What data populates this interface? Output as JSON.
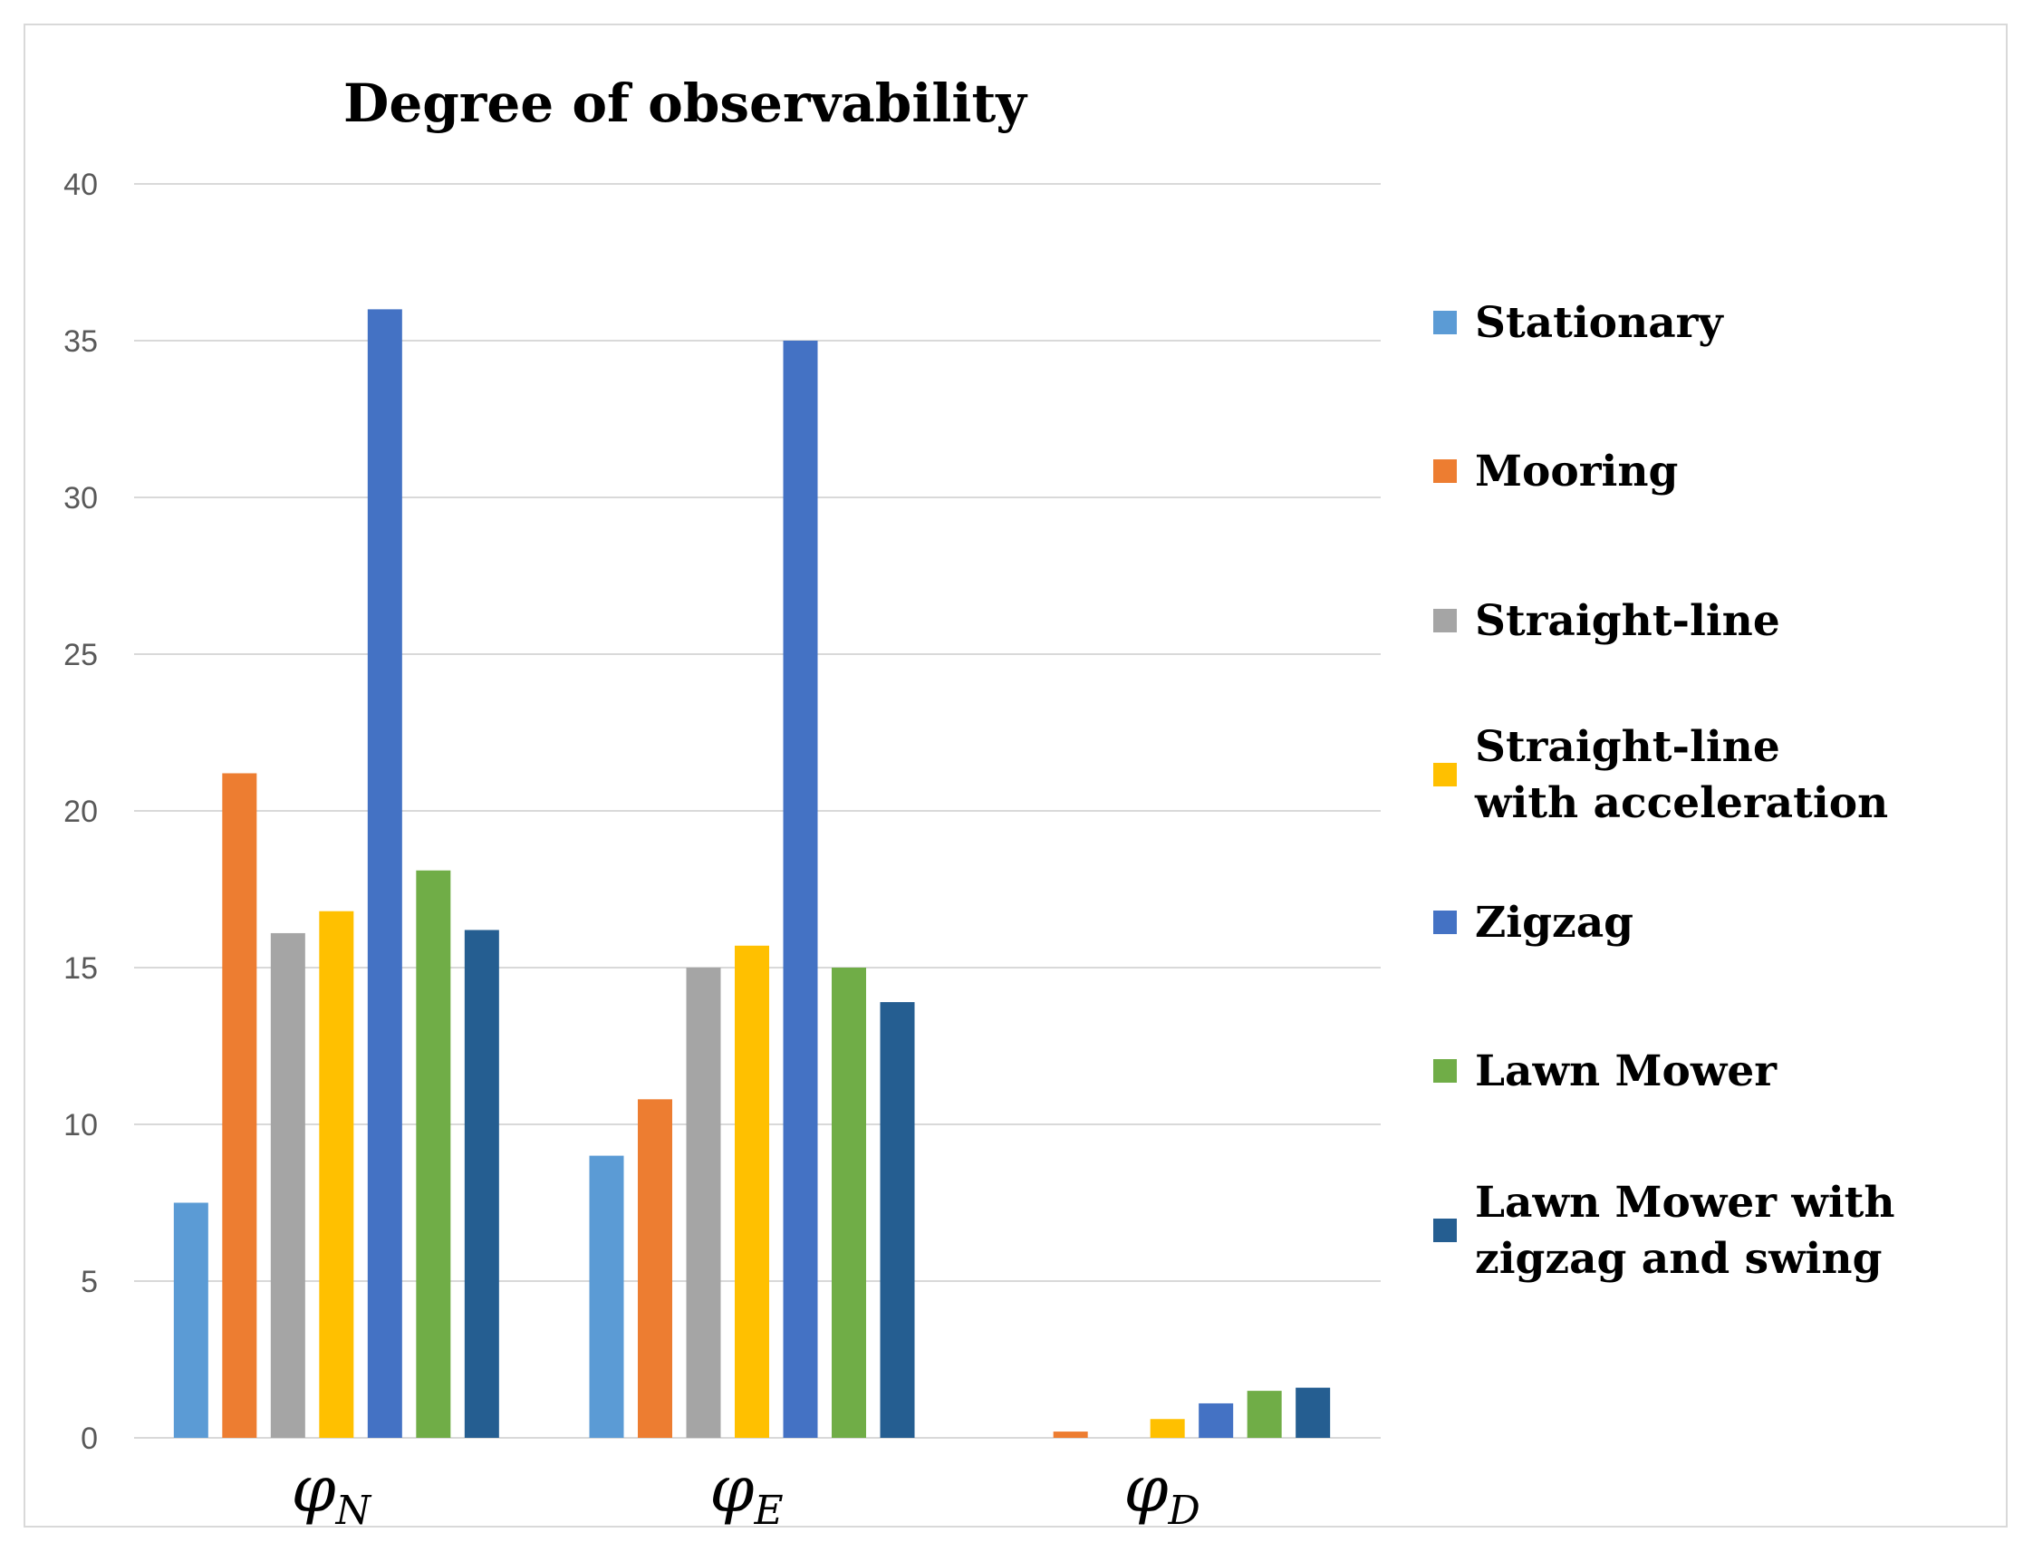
{
  "chart_data": {
    "type": "bar",
    "title": "Degree of observability",
    "xlabel": "",
    "ylabel": "",
    "ylim": [
      0,
      40
    ],
    "yticks": [
      0,
      5,
      10,
      15,
      20,
      25,
      30,
      35,
      40
    ],
    "grid": true,
    "legend_position": "right",
    "categories": [
      {
        "symbol": "φ",
        "subscript": "N"
      },
      {
        "symbol": "φ",
        "subscript": "E"
      },
      {
        "symbol": "φ",
        "subscript": "D"
      }
    ],
    "series": [
      {
        "name": "Stationary",
        "color": "#5b9bd5",
        "values": [
          7.5,
          9.0,
          0.0
        ]
      },
      {
        "name": "Mooring",
        "color": "#ed7d31",
        "values": [
          21.2,
          10.8,
          0.2
        ]
      },
      {
        "name": "Straight-line",
        "color": "#a5a5a5",
        "values": [
          16.1,
          15.0,
          0.0
        ]
      },
      {
        "name": "Straight-line with acceleration",
        "color": "#ffc000",
        "values": [
          16.8,
          15.7,
          0.6
        ]
      },
      {
        "name": "Zigzag",
        "color": "#4472c4",
        "values": [
          36.0,
          35.0,
          1.1
        ]
      },
      {
        "name": "Lawn Mower",
        "color": "#70ad47",
        "values": [
          18.1,
          15.0,
          1.5
        ]
      },
      {
        "name": "Lawn Mower with zigzag and swing",
        "color": "#255e91",
        "values": [
          16.2,
          13.9,
          1.6
        ]
      }
    ],
    "legend_lines": [
      [
        "Stationary"
      ],
      [
        "Mooring"
      ],
      [
        "Straight-line"
      ],
      [
        "Straight-line",
        "with acceleration"
      ],
      [
        "Zigzag"
      ],
      [
        "Lawn Mower"
      ],
      [
        "Lawn Mower with",
        "zigzag and swing"
      ]
    ]
  }
}
